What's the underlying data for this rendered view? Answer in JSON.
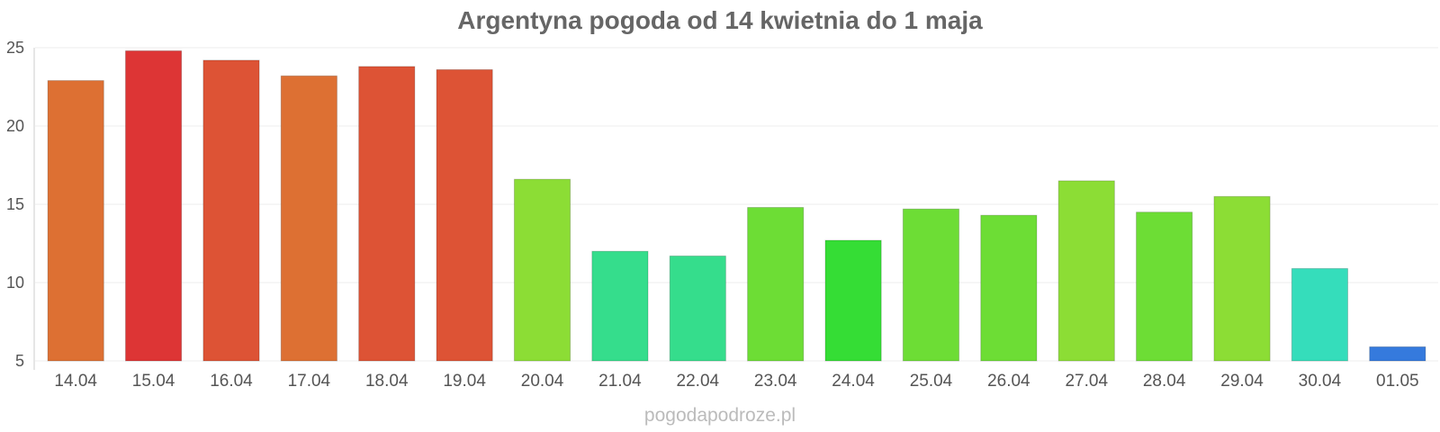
{
  "chart_data": {
    "type": "bar",
    "title": "Argentyna pogoda od 14 kwietnia do 1 maja",
    "xlabel": "",
    "ylabel": "",
    "ylim": [
      5,
      25
    ],
    "yticks": [
      5,
      10,
      15,
      20,
      25
    ],
    "grid": true,
    "categories": [
      "14.04",
      "15.04",
      "16.04",
      "17.04",
      "18.04",
      "19.04",
      "20.04",
      "21.04",
      "22.04",
      "23.04",
      "24.04",
      "25.04",
      "26.04",
      "27.04",
      "28.04",
      "29.04",
      "30.04",
      "01.05"
    ],
    "values": [
      22.9,
      24.8,
      24.2,
      23.2,
      23.8,
      23.6,
      16.6,
      12.0,
      11.7,
      14.8,
      12.7,
      14.7,
      14.3,
      16.5,
      14.5,
      15.5,
      10.9,
      5.9
    ],
    "colors": [
      "#dd7033",
      "#dd3535",
      "#dd5335",
      "#dd7033",
      "#dd5335",
      "#dd5335",
      "#8cdd35",
      "#35dd8c",
      "#35dd8c",
      "#6ddd35",
      "#35dd35",
      "#6ddd35",
      "#6ddd35",
      "#8cdd35",
      "#6ddd35",
      "#8cdd35",
      "#35ddbb",
      "#357add"
    ]
  },
  "footer": "pogodapodroze.pl"
}
